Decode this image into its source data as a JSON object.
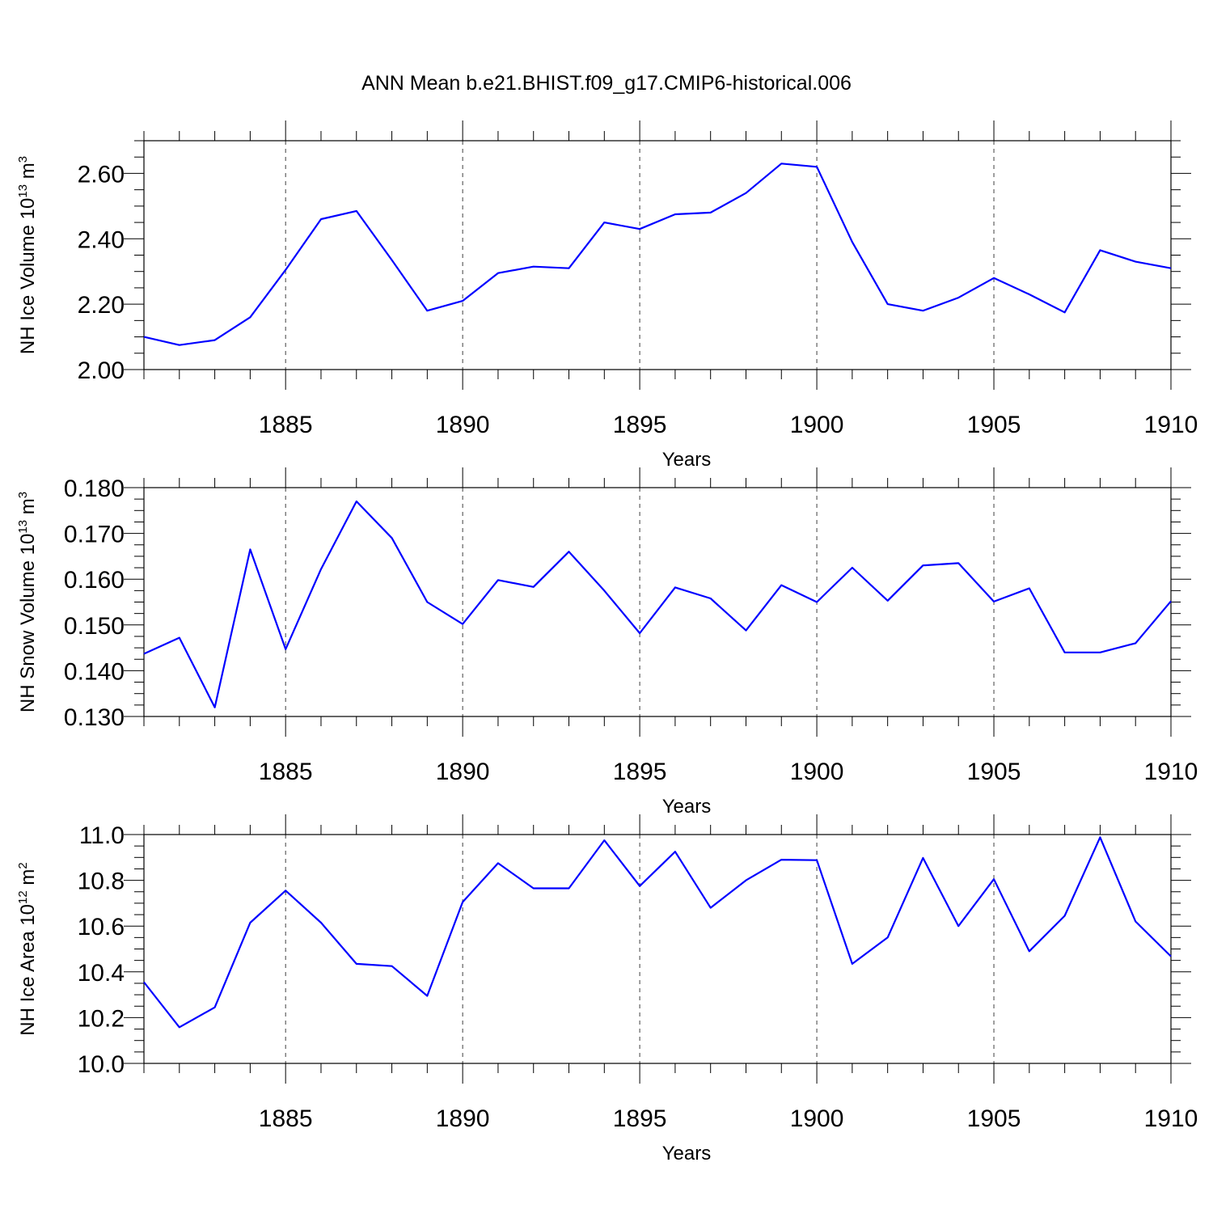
{
  "title": "ANN Mean b.e21.BHIST.f09_g17.CMIP6-historical.006",
  "colors": {
    "series": "#0000ff",
    "axes": "#000000"
  },
  "chart_data": [
    {
      "type": "line",
      "ylabel_main": "NH Ice Volume 10",
      "ylabel_exp": "13",
      "ylabel_unit": " m",
      "ylabel_unit_exp": "3",
      "xlabel": "Years",
      "xlim": [
        1881,
        1910
      ],
      "ylim": [
        2.0,
        2.7
      ],
      "yticks": [
        2.0,
        2.2,
        2.4,
        2.6
      ],
      "ytick_labels": [
        "2.00",
        "2.20",
        "2.40",
        "2.60"
      ],
      "xticks": [
        1885,
        1890,
        1895,
        1900,
        1905,
        1910
      ],
      "xtick_labels": [
        "1885",
        "1890",
        "1895",
        "1900",
        "1905",
        "1910"
      ],
      "grid": "vertical dashed at major x ticks",
      "x": [
        1881,
        1882,
        1883,
        1884,
        1885,
        1886,
        1887,
        1888,
        1889,
        1890,
        1891,
        1892,
        1893,
        1894,
        1895,
        1896,
        1897,
        1898,
        1899,
        1900,
        1901,
        1902,
        1903,
        1904,
        1905,
        1906,
        1907,
        1908,
        1909,
        1910
      ],
      "series": [
        {
          "values": [
            2.1,
            2.075,
            2.09,
            2.16,
            2.305,
            2.46,
            2.485,
            2.335,
            2.18,
            2.21,
            2.295,
            2.315,
            2.31,
            2.45,
            2.43,
            2.475,
            2.48,
            2.54,
            2.63,
            2.62,
            2.39,
            2.2,
            2.18,
            2.22,
            2.28,
            2.23,
            2.175,
            2.365,
            2.33,
            2.31
          ]
        }
      ]
    },
    {
      "type": "line",
      "ylabel_main": "NH Snow Volume 10",
      "ylabel_exp": "13",
      "ylabel_unit": " m",
      "ylabel_unit_exp": "3",
      "xlabel": "Years",
      "xlim": [
        1881,
        1910
      ],
      "ylim": [
        0.13,
        0.18
      ],
      "yticks": [
        0.13,
        0.14,
        0.15,
        0.16,
        0.17,
        0.18
      ],
      "ytick_labels": [
        "0.130",
        "0.140",
        "0.150",
        "0.160",
        "0.170",
        "0.180"
      ],
      "xticks": [
        1885,
        1890,
        1895,
        1900,
        1905,
        1910
      ],
      "xtick_labels": [
        "1885",
        "1890",
        "1895",
        "1900",
        "1905",
        "1910"
      ],
      "grid": "vertical dashed at major x ticks",
      "x": [
        1881,
        1882,
        1883,
        1884,
        1885,
        1886,
        1887,
        1888,
        1889,
        1890,
        1891,
        1892,
        1893,
        1894,
        1895,
        1896,
        1897,
        1898,
        1899,
        1900,
        1901,
        1902,
        1903,
        1904,
        1905,
        1906,
        1907,
        1908,
        1909,
        1910
      ],
      "series": [
        {
          "values": [
            0.1437,
            0.1472,
            0.132,
            0.1665,
            0.1447,
            0.1622,
            0.177,
            0.169,
            0.155,
            0.1502,
            0.1598,
            0.1583,
            0.166,
            0.1575,
            0.1482,
            0.1582,
            0.1558,
            0.1488,
            0.1587,
            0.155,
            0.1625,
            0.1553,
            0.163,
            0.1635,
            0.1551,
            0.158,
            0.144,
            0.144,
            0.146,
            0.1552
          ]
        }
      ]
    },
    {
      "type": "line",
      "ylabel_main": "NH Ice Area 10",
      "ylabel_exp": "12",
      "ylabel_unit": " m",
      "ylabel_unit_exp": "2",
      "xlabel": "Years",
      "xlim": [
        1881,
        1910
      ],
      "ylim": [
        10.0,
        11.0
      ],
      "yticks": [
        10.0,
        10.2,
        10.4,
        10.6,
        10.8,
        11.0
      ],
      "ytick_labels": [
        "10.0",
        "10.2",
        "10.4",
        "10.6",
        "10.8",
        "11.0"
      ],
      "xticks": [
        1885,
        1890,
        1895,
        1900,
        1905,
        1910
      ],
      "xtick_labels": [
        "1885",
        "1890",
        "1895",
        "1900",
        "1905",
        "1910"
      ],
      "grid": "vertical dashed at major x ticks",
      "x": [
        1881,
        1882,
        1883,
        1884,
        1885,
        1886,
        1887,
        1888,
        1889,
        1890,
        1891,
        1892,
        1893,
        1894,
        1895,
        1896,
        1897,
        1898,
        1899,
        1900,
        1901,
        1902,
        1903,
        1904,
        1905,
        1906,
        1907,
        1908,
        1909,
        1910
      ],
      "series": [
        {
          "values": [
            10.355,
            10.158,
            10.245,
            10.615,
            10.755,
            10.615,
            10.435,
            10.425,
            10.295,
            10.705,
            10.875,
            10.765,
            10.765,
            10.975,
            10.775,
            10.925,
            10.68,
            10.8,
            10.89,
            10.888,
            10.435,
            10.55,
            10.898,
            10.6,
            10.805,
            10.49,
            10.645,
            10.988,
            10.62,
            10.468
          ]
        }
      ]
    }
  ]
}
